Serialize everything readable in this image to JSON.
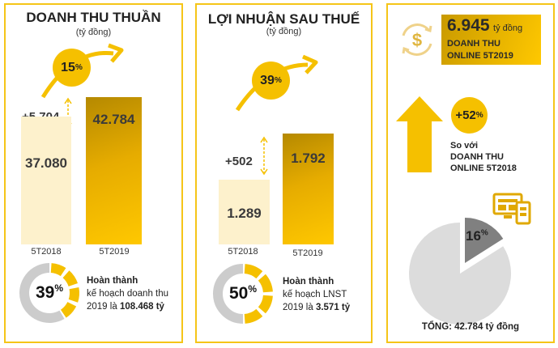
{
  "colors": {
    "accent": "#f5c000",
    "border": "#f5c518",
    "bar_2018": "#fdf1cc",
    "pie_slice": "#808080",
    "pie_rest": "#dcdcdc",
    "donut_rest": "#cccccc"
  },
  "chart_data": [
    {
      "type": "bar",
      "title": "DOANH THU THUẦN",
      "subtitle": "(tỷ đồng)",
      "categories": [
        "5T2018",
        "5T2019"
      ],
      "values": [
        37080,
        42784
      ],
      "value_labels": [
        "37.080",
        "42.784"
      ],
      "difference_label": "+5.704",
      "growth_label": "15",
      "growth_unit": "%",
      "completion": {
        "value": 39,
        "label": "39",
        "unit": "%",
        "line1": "Hoàn thành",
        "line2": "kế hoạch doanh thu",
        "line3_prefix": "2019 là ",
        "line3_bold": "108.468 tỷ"
      }
    },
    {
      "type": "bar",
      "title": "LỢI NHUẬN SAU THUẾ",
      "subtitle": "(tỷ đồng)",
      "categories": [
        "5T2018",
        "5T2019"
      ],
      "values": [
        1289,
        1792
      ],
      "value_labels": [
        "1.289",
        "1.792"
      ],
      "difference_label": "+502",
      "growth_label": "39",
      "growth_unit": "%",
      "completion": {
        "value": 50,
        "label": "50",
        "unit": "%",
        "line1": "Hoàn thành",
        "line2": "kế hoạch LNST",
        "line3_prefix": "2019 là ",
        "line3_bold": "3.571 tỷ"
      }
    },
    {
      "type": "pie",
      "values": [
        16,
        84
      ],
      "slice_label": "16",
      "slice_unit": "%",
      "total_label": "TỔNG: 42.784 tỷ đồng"
    }
  ],
  "online": {
    "value": "6.945",
    "value_unit": "tỷ đồng",
    "line1": "DOANH THU",
    "line2": "ONLINE 5T2019",
    "growth": "+52",
    "growth_unit": "%",
    "compare1": "So với",
    "compare2": "DOANH THU",
    "compare3": "ONLINE 5T2018",
    "icons": [
      "dollar-exchange-icon",
      "up-arrow-icon",
      "desktop-mobile-icon"
    ]
  }
}
